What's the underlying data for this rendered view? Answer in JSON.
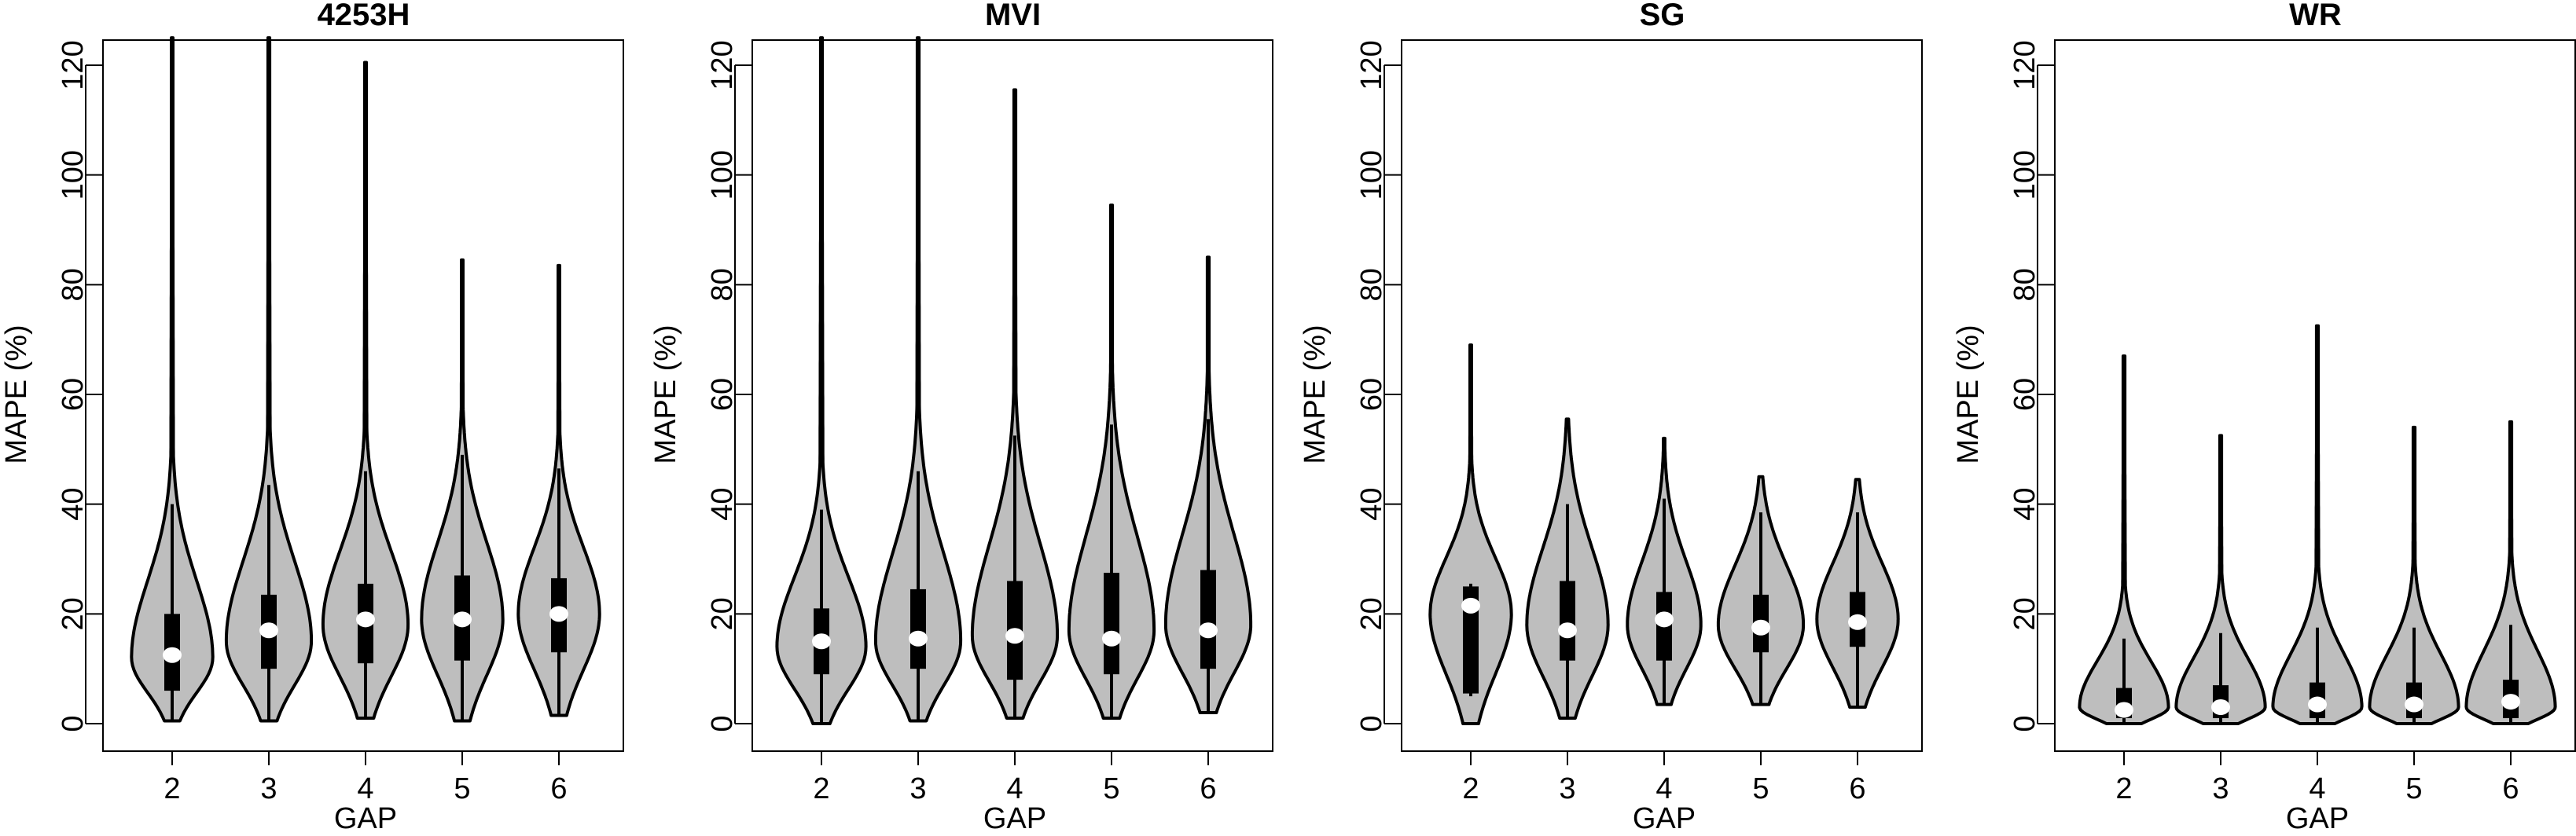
{
  "chart_data": [
    {
      "type": "violin",
      "title": "4253H",
      "xlabel": "GAP",
      "ylabel": "MAPE (%)",
      "ylim": [
        -5,
        125
      ],
      "yticks": [
        "0",
        "20",
        "40",
        "60",
        "80",
        "100",
        "120"
      ],
      "categories": [
        "2",
        "3",
        "4",
        "5",
        "6"
      ],
      "violins": [
        {
          "gap": "2",
          "min": 0.5,
          "max": 125,
          "whisker_low": 0.5,
          "whisker_high": 40,
          "q1": 6,
          "q3": 20,
          "median": 12.5,
          "mode": 12,
          "max_half_width": 0.42
        },
        {
          "gap": "3",
          "min": 0.5,
          "max": 125,
          "whisker_low": 0.5,
          "whisker_high": 43.5,
          "q1": 10,
          "q3": 23.5,
          "median": 17,
          "mode": 15,
          "max_half_width": 0.44
        },
        {
          "gap": "4",
          "min": 1,
          "max": 120.5,
          "whisker_low": 1,
          "whisker_high": 46,
          "q1": 11,
          "q3": 25.5,
          "median": 19,
          "mode": 18,
          "max_half_width": 0.44
        },
        {
          "gap": "5",
          "min": 0.5,
          "max": 84.5,
          "whisker_low": 0.5,
          "whisker_high": 49,
          "q1": 11.5,
          "q3": 27,
          "median": 19,
          "mode": 19,
          "max_half_width": 0.42
        },
        {
          "gap": "6",
          "min": 1.5,
          "max": 83.5,
          "whisker_low": 1.5,
          "whisker_high": 46.5,
          "q1": 13,
          "q3": 26.5,
          "median": 20,
          "mode": 20,
          "max_half_width": 0.42
        }
      ]
    },
    {
      "type": "violin",
      "title": "MVI",
      "xlabel": "GAP",
      "ylabel": "MAPE (%)",
      "ylim": [
        -5,
        125
      ],
      "yticks": [
        "0",
        "20",
        "40",
        "60",
        "80",
        "100",
        "120"
      ],
      "categories": [
        "2",
        "3",
        "4",
        "5",
        "6"
      ],
      "violins": [
        {
          "gap": "2",
          "min": 0,
          "max": 125,
          "whisker_low": 0,
          "whisker_high": 39,
          "q1": 9,
          "q3": 21,
          "median": 15,
          "mode": 14,
          "max_half_width": 0.46
        },
        {
          "gap": "3",
          "min": 0.5,
          "max": 125,
          "whisker_low": 0.5,
          "whisker_high": 46,
          "q1": 10,
          "q3": 24.5,
          "median": 15.5,
          "mode": 15,
          "max_half_width": 0.44
        },
        {
          "gap": "4",
          "min": 1,
          "max": 115.5,
          "whisker_low": 1,
          "whisker_high": 52.5,
          "q1": 8,
          "q3": 26,
          "median": 16,
          "mode": 16,
          "max_half_width": 0.44
        },
        {
          "gap": "5",
          "min": 1,
          "max": 94.5,
          "whisker_low": 1,
          "whisker_high": 54.5,
          "q1": 9,
          "q3": 27.5,
          "median": 15.5,
          "mode": 17,
          "max_half_width": 0.44
        },
        {
          "gap": "6",
          "min": 2,
          "max": 85,
          "whisker_low": 2,
          "whisker_high": 55.5,
          "q1": 10,
          "q3": 28,
          "median": 17,
          "mode": 18,
          "max_half_width": 0.44
        }
      ]
    },
    {
      "type": "violin",
      "title": "SG",
      "xlabel": "GAP",
      "ylabel": "MAPE (%)",
      "ylim": [
        -5,
        125
      ],
      "yticks": [
        "0",
        "20",
        "40",
        "60",
        "80",
        "100",
        "120"
      ],
      "categories": [
        "2",
        "3",
        "4",
        "5",
        "6"
      ],
      "violins": [
        {
          "gap": "2",
          "min": 0,
          "max": 69,
          "whisker_low": 5,
          "whisker_high": 25.5,
          "q1": 5.5,
          "q3": 25,
          "median": 21.5,
          "mode": 20,
          "max_half_width": 0.42
        },
        {
          "gap": "3",
          "min": 1,
          "max": 55.5,
          "whisker_low": 1,
          "whisker_high": 40,
          "q1": 11.5,
          "q3": 26,
          "median": 17,
          "mode": 18,
          "max_half_width": 0.42
        },
        {
          "gap": "4",
          "min": 3.5,
          "max": 52,
          "whisker_low": 3.5,
          "whisker_high": 41,
          "q1": 11.5,
          "q3": 24,
          "median": 19,
          "mode": 18,
          "max_half_width": 0.38
        },
        {
          "gap": "5",
          "min": 3.5,
          "max": 45,
          "whisker_low": 3.5,
          "whisker_high": 38.5,
          "q1": 13,
          "q3": 23.5,
          "median": 17.5,
          "mode": 18,
          "max_half_width": 0.44
        },
        {
          "gap": "6",
          "min": 3,
          "max": 44.5,
          "whisker_low": 3,
          "whisker_high": 38.5,
          "q1": 14,
          "q3": 24,
          "median": 18.5,
          "mode": 19,
          "max_half_width": 0.42
        }
      ]
    },
    {
      "type": "violin",
      "title": "WR",
      "xlabel": "GAP",
      "ylabel": "MAPE (%)",
      "ylim": [
        -5,
        125
      ],
      "yticks": [
        "0",
        "20",
        "40",
        "60",
        "80",
        "100",
        "120"
      ],
      "categories": [
        "2",
        "3",
        "4",
        "5",
        "6"
      ],
      "violins": [
        {
          "gap": "2",
          "min": 0,
          "max": 67,
          "whisker_low": 0,
          "whisker_high": 15.5,
          "q1": 1,
          "q3": 6.5,
          "median": 2.5,
          "mode": 3,
          "max_half_width": 0.46
        },
        {
          "gap": "3",
          "min": 0,
          "max": 52.5,
          "whisker_low": 0,
          "whisker_high": 16.5,
          "q1": 1,
          "q3": 7,
          "median": 3,
          "mode": 3,
          "max_half_width": 0.46
        },
        {
          "gap": "4",
          "min": 0,
          "max": 72.5,
          "whisker_low": 0,
          "whisker_high": 17.5,
          "q1": 1,
          "q3": 7.5,
          "median": 3.5,
          "mode": 3,
          "max_half_width": 0.46
        },
        {
          "gap": "5",
          "min": 0,
          "max": 54,
          "whisker_low": 0,
          "whisker_high": 17.5,
          "q1": 1,
          "q3": 7.5,
          "median": 3.5,
          "mode": 3,
          "max_half_width": 0.46
        },
        {
          "gap": "6",
          "min": 0,
          "max": 55,
          "whisker_low": 0,
          "whisker_high": 18,
          "q1": 1,
          "q3": 8,
          "median": 4,
          "mode": 3,
          "max_half_width": 0.46
        }
      ]
    }
  ],
  "colors": {
    "violin_fill": "#bebebe",
    "outline": "#000000",
    "median_dot": "#ffffff",
    "background": "#ffffff"
  }
}
